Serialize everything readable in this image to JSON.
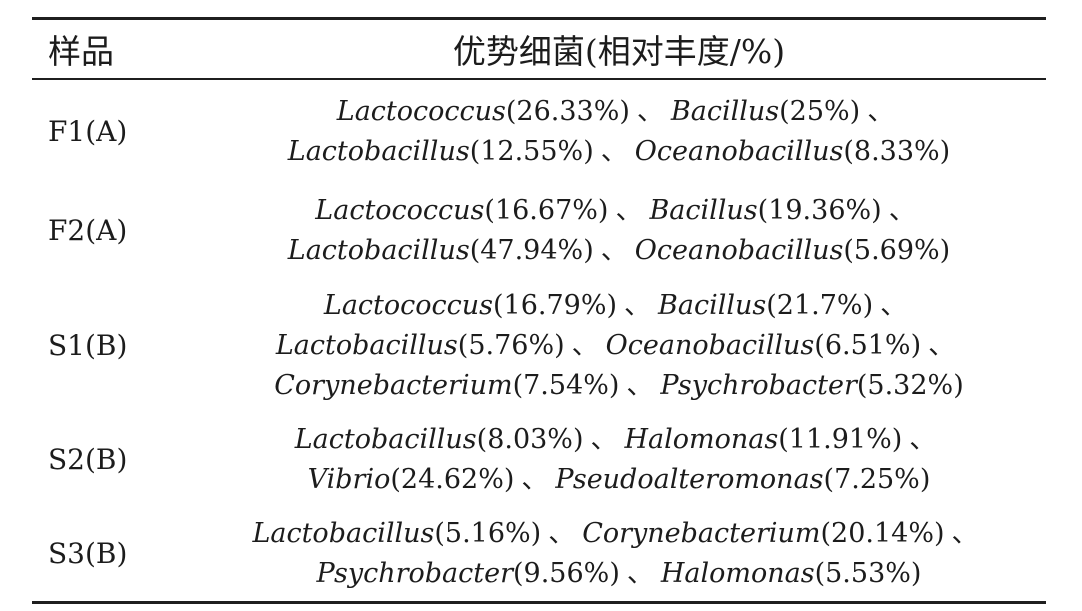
{
  "table": {
    "header": {
      "sample_col": "样品",
      "bacteria_col": "优势细菌(相对丰度/%)"
    },
    "separator": "、",
    "rows": [
      {
        "sample": "F1(A)",
        "bacteria": [
          {
            "genus": "Lactococcus",
            "abundance": "26.33%"
          },
          {
            "genus": "Bacillus",
            "abundance": "25%"
          },
          {
            "genus": "Lactobacillus",
            "abundance": "12.55%"
          },
          {
            "genus": "Oceanobacillus",
            "abundance": "8.33%"
          }
        ]
      },
      {
        "sample": "F2(A)",
        "bacteria": [
          {
            "genus": "Lactococcus",
            "abundance": "16.67%"
          },
          {
            "genus": "Bacillus",
            "abundance": "19.36%"
          },
          {
            "genus": "Lactobacillus",
            "abundance": "47.94%"
          },
          {
            "genus": "Oceanobacillus",
            "abundance": "5.69%"
          }
        ]
      },
      {
        "sample": "S1(B)",
        "bacteria": [
          {
            "genus": "Lactococcus",
            "abundance": "16.79%"
          },
          {
            "genus": "Bacillus",
            "abundance": "21.7%"
          },
          {
            "genus": "Lactobacillus",
            "abundance": "5.76%"
          },
          {
            "genus": "Oceanobacillus",
            "abundance": "6.51%"
          },
          {
            "genus": "Corynebacterium",
            "abundance": "7.54%"
          },
          {
            "genus": "Psychrobacter",
            "abundance": "5.32%"
          }
        ]
      },
      {
        "sample": "S2(B)",
        "bacteria": [
          {
            "genus": "Lactobacillus",
            "abundance": "8.03%"
          },
          {
            "genus": "Halomonas",
            "abundance": "11.91%"
          },
          {
            "genus": "Vibrio",
            "abundance": "24.62%"
          },
          {
            "genus": "Pseudoalteromonas",
            "abundance": "7.25%"
          }
        ]
      },
      {
        "sample": "S3(B)",
        "bacteria": [
          {
            "genus": "Lactobacillus",
            "abundance": "5.16%"
          },
          {
            "genus": "Corynebacterium",
            "abundance": "20.14%"
          },
          {
            "genus": "Psychrobacter",
            "abundance": "9.56%"
          },
          {
            "genus": "Halomonas",
            "abundance": "5.53%"
          }
        ]
      }
    ]
  },
  "colors": {
    "background": "#ffffff",
    "text": "#1c1c1c",
    "rule": "#1f1f1f"
  }
}
